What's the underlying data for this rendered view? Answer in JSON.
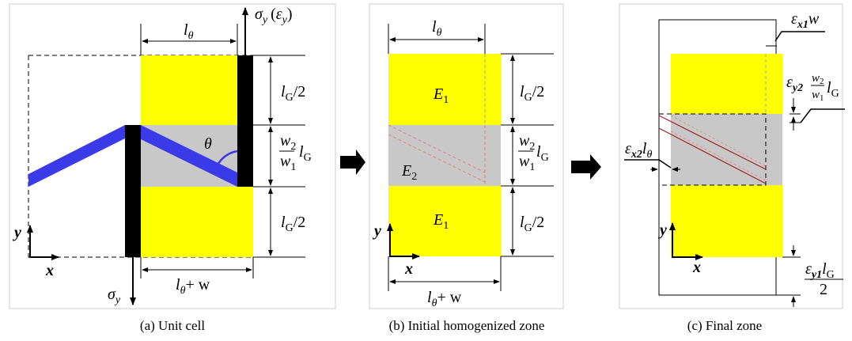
{
  "captions": {
    "a": "(a) Unit cell",
    "b": "(b) Initial homogenized zone",
    "c": "(c) Final zone"
  },
  "symbols": {
    "l_theta": "l",
    "theta_sub": "θ",
    "sigma": "σ",
    "y_sub": "y",
    "epsilon": "ε",
    "theta": "θ",
    "l": "l",
    "G": "G",
    "half": "/2",
    "w": "w",
    "w2": "w",
    "two": "2",
    "w1": "w",
    "one": "1",
    "plus_w": "+ w",
    "E1": "E",
    "E1_sub": "1",
    "E2": "E",
    "E2_sub": "2",
    "x": "x",
    "y": "y",
    "x1": "x1",
    "x2": "x2",
    "y1": "y1",
    "y2": "y2",
    "paren_open": "(",
    "paren_close": ")",
    "denominator": "2"
  },
  "colors": {
    "yellow": "#ffff00",
    "gray": "#c8c8c8",
    "blue": "#3a3ae8",
    "black": "#000000",
    "red": "#b03030"
  }
}
